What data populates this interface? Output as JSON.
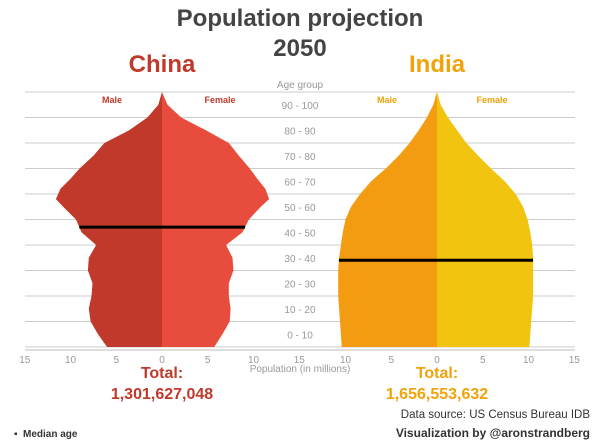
{
  "chart_data": {
    "type": "population-pyramid",
    "title": "Population projection",
    "subtitle": "2050",
    "axis_title_top": "Age group",
    "axis_title_bottom": "Population (in millions)",
    "age_groups": [
      "0 - 10",
      "10 - 20",
      "20 - 30",
      "30 - 40",
      "40 - 50",
      "50 - 60",
      "60 - 70",
      "70 - 80",
      "80 - 90",
      "90 - 100"
    ],
    "x_ticks": [
      15,
      10,
      5,
      0,
      5,
      10,
      15
    ],
    "xlim": [
      -15,
      15
    ],
    "age_range": [
      0,
      100
    ],
    "legend_marker": "▪",
    "legend_label": "Median age",
    "data_source": "Data source: US Census Bureau IDB",
    "credit": "Visualization by @aronstrandberg",
    "countries": [
      {
        "name": "China",
        "male_label": "Male",
        "female_label": "Female",
        "total_label": "Total:",
        "total_value": "1,301,627,048",
        "median_age": 47,
        "colors": {
          "title": "#C0392B",
          "male": "#C0392B",
          "female": "#E74C3C",
          "sex_label": "#C0392B"
        },
        "ages": [
          0,
          5,
          10,
          15,
          20,
          25,
          30,
          35,
          40,
          45,
          50,
          55,
          58,
          62,
          66,
          70,
          75,
          80,
          85,
          90,
          95,
          100
        ],
        "male_millions": [
          6.0,
          7.0,
          7.8,
          8.0,
          7.7,
          7.6,
          8.1,
          8.0,
          7.2,
          8.8,
          9.4,
          10.8,
          11.6,
          11.1,
          10.0,
          9.0,
          7.5,
          6.3,
          3.6,
          1.6,
          0.4,
          0.0
        ],
        "female_millions": [
          5.7,
          6.6,
          7.4,
          7.5,
          7.3,
          7.3,
          7.8,
          7.7,
          7.0,
          8.8,
          9.5,
          10.8,
          11.7,
          11.3,
          10.4,
          9.6,
          8.4,
          7.3,
          4.8,
          2.1,
          0.6,
          0.0
        ]
      },
      {
        "name": "India",
        "male_label": "Male",
        "female_label": "Female",
        "total_label": "Total:",
        "total_value": "1,656,553,632",
        "median_age": 34,
        "colors": {
          "title": "#F0A30A",
          "male": "#F39C12",
          "female": "#F1C40F",
          "sex_label": "#F0A30A"
        },
        "ages": [
          0,
          5,
          10,
          15,
          20,
          25,
          30,
          35,
          40,
          45,
          50,
          55,
          60,
          65,
          70,
          75,
          80,
          85,
          90,
          95,
          100
        ],
        "male_millions": [
          10.4,
          10.5,
          10.6,
          10.7,
          10.8,
          10.8,
          10.8,
          10.7,
          10.5,
          10.3,
          10.0,
          9.4,
          8.4,
          7.2,
          5.6,
          4.2,
          3.0,
          2.0,
          1.1,
          0.4,
          0.0
        ],
        "female_millions": [
          10.1,
          10.2,
          10.3,
          10.4,
          10.5,
          10.5,
          10.5,
          10.5,
          10.4,
          10.2,
          9.9,
          9.4,
          8.6,
          7.4,
          5.9,
          4.5,
          3.2,
          2.2,
          1.2,
          0.4,
          0.0
        ]
      }
    ]
  }
}
